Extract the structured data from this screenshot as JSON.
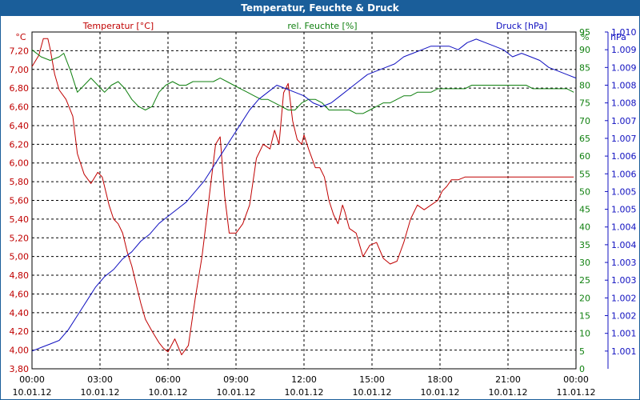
{
  "window": {
    "title": "Temperatur, Feuchte & Druck"
  },
  "colors": {
    "temperature": "#c00000",
    "humidity": "#108010",
    "pressure": "#1010c0",
    "frame": "#1a5e9a"
  },
  "chart_data": {
    "type": "line",
    "title": "Temperatur, Feuchte & Druck",
    "axes": {
      "temperature": {
        "unit_label": "°C",
        "label": "Temperatur [°C]",
        "min": 3.8,
        "max": 7.4,
        "ticks": [
          "3,80",
          "4,00",
          "4,20",
          "4,40",
          "4,60",
          "4,80",
          "5,00",
          "5,20",
          "5,40",
          "5,60",
          "5,80",
          "6,00",
          "6,20",
          "6,40",
          "6,60",
          "6,80",
          "7,00",
          "7,20"
        ]
      },
      "humidity": {
        "unit_label": "%",
        "label": "rel. Feuchte [%]",
        "min": 0,
        "max": 95,
        "ticks": [
          "0",
          "5",
          "10",
          "15",
          "20",
          "25",
          "30",
          "35",
          "40",
          "45",
          "50",
          "55",
          "60",
          "65",
          "70",
          "75",
          "80",
          "85",
          "90",
          "95"
        ]
      },
      "pressure": {
        "unit_label": "hPa",
        "label": "Druck [hPa]",
        "min": 1000.5,
        "max": 1010.0,
        "ticks": [
          "1.001",
          "1.001",
          "1.002",
          "1.002",
          "1.003",
          "1.003",
          "1.004",
          "1.004",
          "1.005",
          "1.005",
          "1.006",
          "1.006",
          "1.007",
          "1.007",
          "1.008",
          "1.008",
          "1.009",
          "1.009",
          "1.010"
        ]
      }
    },
    "x_ticks": [
      {
        "time": "00:00",
        "date": "10.01.12"
      },
      {
        "time": "03:00",
        "date": "10.01.12"
      },
      {
        "time": "06:00",
        "date": "10.01.12"
      },
      {
        "time": "09:00",
        "date": "10.01.12"
      },
      {
        "time": "12:00",
        "date": "10.01.12"
      },
      {
        "time": "15:00",
        "date": "10.01.12"
      },
      {
        "time": "18:00",
        "date": "10.01.12"
      },
      {
        "time": "21:00",
        "date": "10.01.12"
      },
      {
        "time": "00:00",
        "date": "11.01.12"
      }
    ],
    "x_range_hours": [
      0,
      24
    ],
    "series": [
      {
        "name": "Temperatur [°C]",
        "axis": "temperature",
        "x": [
          0,
          0.3,
          0.5,
          0.7,
          0.8,
          1.0,
          1.2,
          1.5,
          1.8,
          2.0,
          2.3,
          2.6,
          2.9,
          3.1,
          3.3,
          3.4,
          3.6,
          3.8,
          4.0,
          4.2,
          4.4,
          4.6,
          4.8,
          5.0,
          5.3,
          5.6,
          5.8,
          6.0,
          6.3,
          6.6,
          6.9,
          7.2,
          7.5,
          7.7,
          7.9,
          8.1,
          8.3,
          8.5,
          8.7,
          9.0,
          9.3,
          9.6,
          9.9,
          10.2,
          10.5,
          10.7,
          10.9,
          11.1,
          11.3,
          11.5,
          11.7,
          11.9,
          12.0,
          12.2,
          12.5,
          12.7,
          12.9,
          13.1,
          13.3,
          13.5,
          13.7,
          13.8,
          14.0,
          14.3,
          14.6,
          14.9,
          15.2,
          15.5,
          15.8,
          16.1,
          16.4,
          16.7,
          17.0,
          17.3,
          17.6,
          17.9,
          18.1,
          18.3,
          18.5,
          18.8,
          19.1,
          19.4,
          19.7,
          20.0,
          20.3,
          20.6,
          20.9,
          21.2,
          21.5,
          21.8,
          22.1,
          22.4,
          22.7,
          23.0,
          23.3,
          23.6,
          23.9
        ],
        "values": [
          7.03,
          7.15,
          7.33,
          7.33,
          7.22,
          6.95,
          6.78,
          6.68,
          6.5,
          6.1,
          5.88,
          5.78,
          5.9,
          5.85,
          5.65,
          5.55,
          5.4,
          5.35,
          5.25,
          5.05,
          4.9,
          4.7,
          4.5,
          4.33,
          4.2,
          4.08,
          4.02,
          3.98,
          4.12,
          3.95,
          4.05,
          4.55,
          5.0,
          5.4,
          5.8,
          6.2,
          6.28,
          5.65,
          5.25,
          5.25,
          5.35,
          5.55,
          6.05,
          6.2,
          6.15,
          6.35,
          6.2,
          6.75,
          6.85,
          6.45,
          6.25,
          6.2,
          6.3,
          6.15,
          5.95,
          5.95,
          5.85,
          5.6,
          5.45,
          5.35,
          5.55,
          5.48,
          5.3,
          5.25,
          5.0,
          5.12,
          5.15,
          4.98,
          4.92,
          4.95,
          5.15,
          5.4,
          5.55,
          5.5,
          5.55,
          5.6,
          5.7,
          5.75,
          5.82,
          5.82,
          5.85,
          5.85,
          5.85,
          5.85,
          5.85,
          5.85,
          5.85,
          5.85,
          5.85,
          5.85,
          5.85,
          5.85,
          5.85,
          5.85,
          5.85,
          5.85,
          5.85
        ]
      },
      {
        "name": "rel. Feuchte [%]",
        "axis": "humidity",
        "x": [
          0,
          0.4,
          0.8,
          1.2,
          1.4,
          1.7,
          2.0,
          2.3,
          2.6,
          2.9,
          3.2,
          3.5,
          3.8,
          4.1,
          4.4,
          4.7,
          5.0,
          5.3,
          5.6,
          5.9,
          6.2,
          6.5,
          6.8,
          7.1,
          7.4,
          7.7,
          8.0,
          8.3,
          8.6,
          8.9,
          9.2,
          9.5,
          9.8,
          10.1,
          10.4,
          10.7,
          11.0,
          11.3,
          11.6,
          11.9,
          12.2,
          12.5,
          12.8,
          13.1,
          13.4,
          13.7,
          14.0,
          14.3,
          14.6,
          14.9,
          15.2,
          15.5,
          15.8,
          16.1,
          16.4,
          16.7,
          17.0,
          17.3,
          17.6,
          17.9,
          18.2,
          18.5,
          18.8,
          19.1,
          19.4,
          19.7,
          20.0,
          20.3,
          20.6,
          20.9,
          21.2,
          21.5,
          21.8,
          22.1,
          22.4,
          22.7,
          23.0,
          23.3,
          23.6,
          23.9
        ],
        "values": [
          90,
          88,
          87,
          88,
          89,
          84,
          78,
          80,
          82,
          80,
          78,
          80,
          81,
          79,
          76,
          74,
          73,
          74,
          78,
          80,
          81,
          80,
          80,
          81,
          81,
          81,
          81,
          82,
          81,
          80,
          79,
          78,
          77,
          76,
          76,
          75,
          74,
          73,
          73,
          75,
          76,
          76,
          75,
          73,
          73,
          73,
          73,
          72,
          72,
          73,
          74,
          75,
          75,
          76,
          77,
          77,
          78,
          78,
          78,
          79,
          79,
          79,
          79,
          79,
          80,
          80,
          80,
          80,
          80,
          80,
          80,
          80,
          80,
          79,
          79,
          79,
          79,
          79,
          79,
          78
        ]
      },
      {
        "name": "Druck [hPa]",
        "axis": "pressure",
        "x": [
          0,
          0.4,
          0.8,
          1.2,
          1.6,
          2.0,
          2.4,
          2.8,
          3.2,
          3.6,
          4.0,
          4.4,
          4.8,
          5.2,
          5.6,
          6.0,
          6.4,
          6.8,
          7.2,
          7.6,
          8.0,
          8.4,
          8.8,
          9.2,
          9.6,
          10.0,
          10.4,
          10.8,
          11.2,
          11.6,
          12.0,
          12.4,
          12.8,
          13.2,
          13.6,
          14.0,
          14.4,
          14.8,
          15.2,
          15.6,
          16.0,
          16.4,
          16.8,
          17.2,
          17.6,
          18.0,
          18.4,
          18.8,
          19.2,
          19.6,
          20.0,
          20.4,
          20.8,
          21.2,
          21.6,
          22.0,
          22.4,
          22.8,
          23.2,
          23.6,
          24.0
        ],
        "values": [
          1001.0,
          1001.1,
          1001.2,
          1001.3,
          1001.6,
          1002.0,
          1002.4,
          1002.8,
          1003.1,
          1003.3,
          1003.6,
          1003.8,
          1004.1,
          1004.3,
          1004.6,
          1004.8,
          1005.0,
          1005.2,
          1005.5,
          1005.8,
          1006.2,
          1006.6,
          1007.0,
          1007.4,
          1007.8,
          1008.1,
          1008.3,
          1008.5,
          1008.4,
          1008.3,
          1008.2,
          1008.0,
          1007.9,
          1008.0,
          1008.2,
          1008.4,
          1008.6,
          1008.8,
          1008.9,
          1009.0,
          1009.1,
          1009.3,
          1009.4,
          1009.5,
          1009.6,
          1009.6,
          1009.6,
          1009.5,
          1009.7,
          1009.8,
          1009.7,
          1009.6,
          1009.5,
          1009.3,
          1009.4,
          1009.3,
          1009.2,
          1009.0,
          1008.9,
          1008.8,
          1008.7
        ]
      }
    ]
  }
}
